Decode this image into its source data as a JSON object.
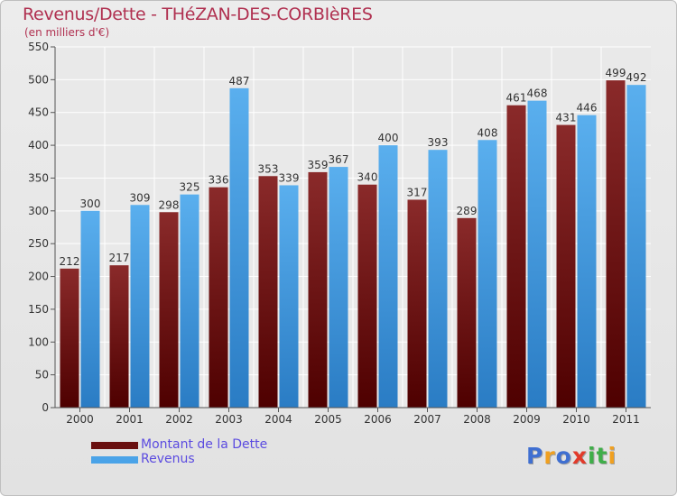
{
  "title": "Revenus/Dette - THéZAN-DES-CORBIèRES",
  "subtitle": "(en milliers d'€)",
  "colors": {
    "debt": "#7a1a1a",
    "revenue": "#4aa3e8",
    "title": "#b03050",
    "legend_text": "#5b4be0"
  },
  "legend": [
    {
      "label": "Montant de la Dette",
      "color": "#6a1010"
    },
    {
      "label": "Revenus",
      "color": "#4aa3e8"
    }
  ],
  "logo": {
    "letters": [
      "P",
      "r",
      "o",
      "x",
      "i",
      "t",
      "i"
    ],
    "colors": [
      "#3f6fd1",
      "#f0a020",
      "#3f6fd1",
      "#e23a2a",
      "#3fae49",
      "#3fae49",
      "#f0a020"
    ]
  },
  "chart_data": {
    "type": "bar",
    "categories": [
      "2000",
      "2001",
      "2002",
      "2003",
      "2004",
      "2005",
      "2006",
      "2007",
      "2008",
      "2009",
      "2010",
      "2011"
    ],
    "series": [
      {
        "name": "Montant de la Dette",
        "values": [
          212,
          217,
          298,
          336,
          353,
          359,
          340,
          317,
          289,
          461,
          431,
          499
        ]
      },
      {
        "name": "Revenus",
        "values": [
          300,
          309,
          325,
          487,
          339,
          367,
          400,
          393,
          408,
          468,
          446,
          492
        ]
      }
    ],
    "ylim": [
      0,
      550
    ],
    "yticks": [
      0,
      50,
      100,
      150,
      200,
      250,
      300,
      350,
      400,
      450,
      500,
      550
    ],
    "grid": true,
    "legend_position": "bottom-left"
  }
}
